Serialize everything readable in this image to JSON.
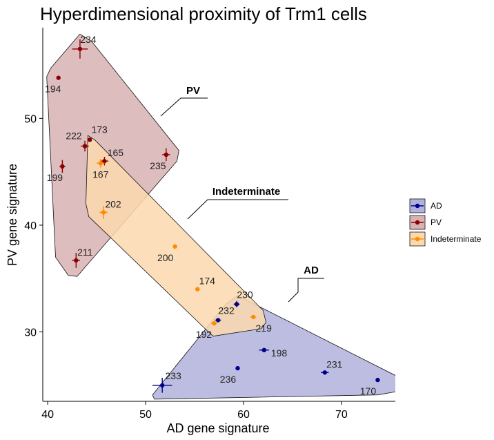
{
  "chart_data": {
    "type": "scatter",
    "title": "Hyperdimensional proximity of Trm1 cells",
    "xlabel": "AD gene signature",
    "ylabel": "PV gene signature",
    "xlim": [
      39.5,
      75.5
    ],
    "ylim": [
      23.5,
      58.5
    ],
    "x_ticks": [
      40,
      50,
      60,
      70
    ],
    "y_ticks": [
      30,
      40,
      50
    ],
    "grid": false,
    "legend_position": "right",
    "series": [
      {
        "name": "AD",
        "color": "#00008B",
        "fill": "#B0B2DB",
        "points": [
          {
            "id": "233",
            "x": 51.7,
            "y": 25.0,
            "xerr": 1.0,
            "yerr": 0.7
          },
          {
            "id": "236",
            "x": 59.4,
            "y": 26.6,
            "xerr": 0,
            "yerr": 0
          },
          {
            "id": "198",
            "x": 62.1,
            "y": 28.3,
            "xerr": 0.5,
            "yerr": 0
          },
          {
            "id": "231",
            "x": 68.3,
            "y": 26.2,
            "xerr": 0.4,
            "yerr": 0
          },
          {
            "id": "170",
            "x": 73.7,
            "y": 25.5,
            "xerr": 0,
            "yerr": 0
          },
          {
            "id": "230",
            "x": 59.3,
            "y": 32.6,
            "xerr": 0.3,
            "yerr": 0.3
          },
          {
            "id": "232",
            "x": 57.4,
            "y": 31.1,
            "xerr": 0.3,
            "yerr": 0
          }
        ]
      },
      {
        "name": "PV",
        "color": "#8B0000",
        "fill": "#D8B2B4",
        "points": [
          {
            "id": "234",
            "x": 43.3,
            "y": 56.5,
            "xerr": 0.8,
            "yerr": 0.9
          },
          {
            "id": "194",
            "x": 41.1,
            "y": 53.8,
            "xerr": 0,
            "yerr": 0
          },
          {
            "id": "173",
            "x": 44.3,
            "y": 48.0,
            "xerr": 0,
            "yerr": 0
          },
          {
            "id": "222",
            "x": 43.8,
            "y": 47.4,
            "xerr": 0.4,
            "yerr": 0.5
          },
          {
            "id": "165",
            "x": 45.8,
            "y": 46.0,
            "xerr": 0.4,
            "yerr": 0.4
          },
          {
            "id": "235",
            "x": 52.1,
            "y": 46.6,
            "xerr": 0.4,
            "yerr": 0.6
          },
          {
            "id": "199",
            "x": 41.5,
            "y": 45.5,
            "xerr": 0.3,
            "yerr": 0.6
          },
          {
            "id": "211",
            "x": 42.9,
            "y": 36.7,
            "xerr": 0.4,
            "yerr": 0.7
          }
        ]
      },
      {
        "name": "Indeterminate",
        "color": "#FF8C00",
        "fill": "#FCD9AE",
        "points": [
          {
            "id": "167",
            "x": 45.4,
            "y": 45.8,
            "xerr": 0.4,
            "yerr": 0.4
          },
          {
            "id": "202",
            "x": 45.7,
            "y": 41.2,
            "xerr": 0.4,
            "yerr": 0.6
          },
          {
            "id": "200",
            "x": 53.0,
            "y": 38.0,
            "xerr": 0,
            "yerr": 0
          },
          {
            "id": "174",
            "x": 55.3,
            "y": 34.0,
            "xerr": 0,
            "yerr": 0
          },
          {
            "id": "219",
            "x": 61.0,
            "y": 31.4,
            "xerr": 0.3,
            "yerr": 0
          },
          {
            "id": "192",
            "x": 57.0,
            "y": 30.8,
            "xerr": 0.3,
            "yerr": 0
          }
        ]
      }
    ],
    "cluster_annotations": [
      {
        "label": "PV"
      },
      {
        "label": "Indeterminate"
      },
      {
        "label": "AD"
      }
    ],
    "legend": [
      "AD",
      "PV",
      "Indeterminate"
    ]
  }
}
